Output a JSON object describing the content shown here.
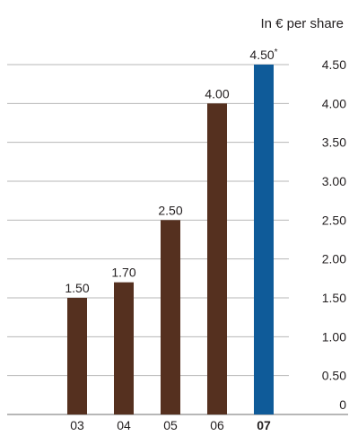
{
  "chart_data": {
    "type": "bar",
    "unit_label": "In € per share",
    "categories": [
      "03",
      "04",
      "05",
      "06",
      "07"
    ],
    "values": [
      1.5,
      1.7,
      2.5,
      4.0,
      4.5
    ],
    "value_labels": [
      "1.50",
      "1.70",
      "2.50",
      "4.00",
      "4.50*"
    ],
    "highlight_index": 4,
    "ylim": [
      0,
      4.5
    ],
    "yticks": [
      "0",
      "0.50",
      "1.00",
      "1.50",
      "2.00",
      "2.50",
      "3.00",
      "3.50",
      "4.00",
      "4.50"
    ],
    "grid": true,
    "colors": {
      "bar": "#55301f",
      "highlight": "#0f5b99",
      "grid": "#b7b7b7",
      "axis": "#6f6f6f"
    }
  }
}
